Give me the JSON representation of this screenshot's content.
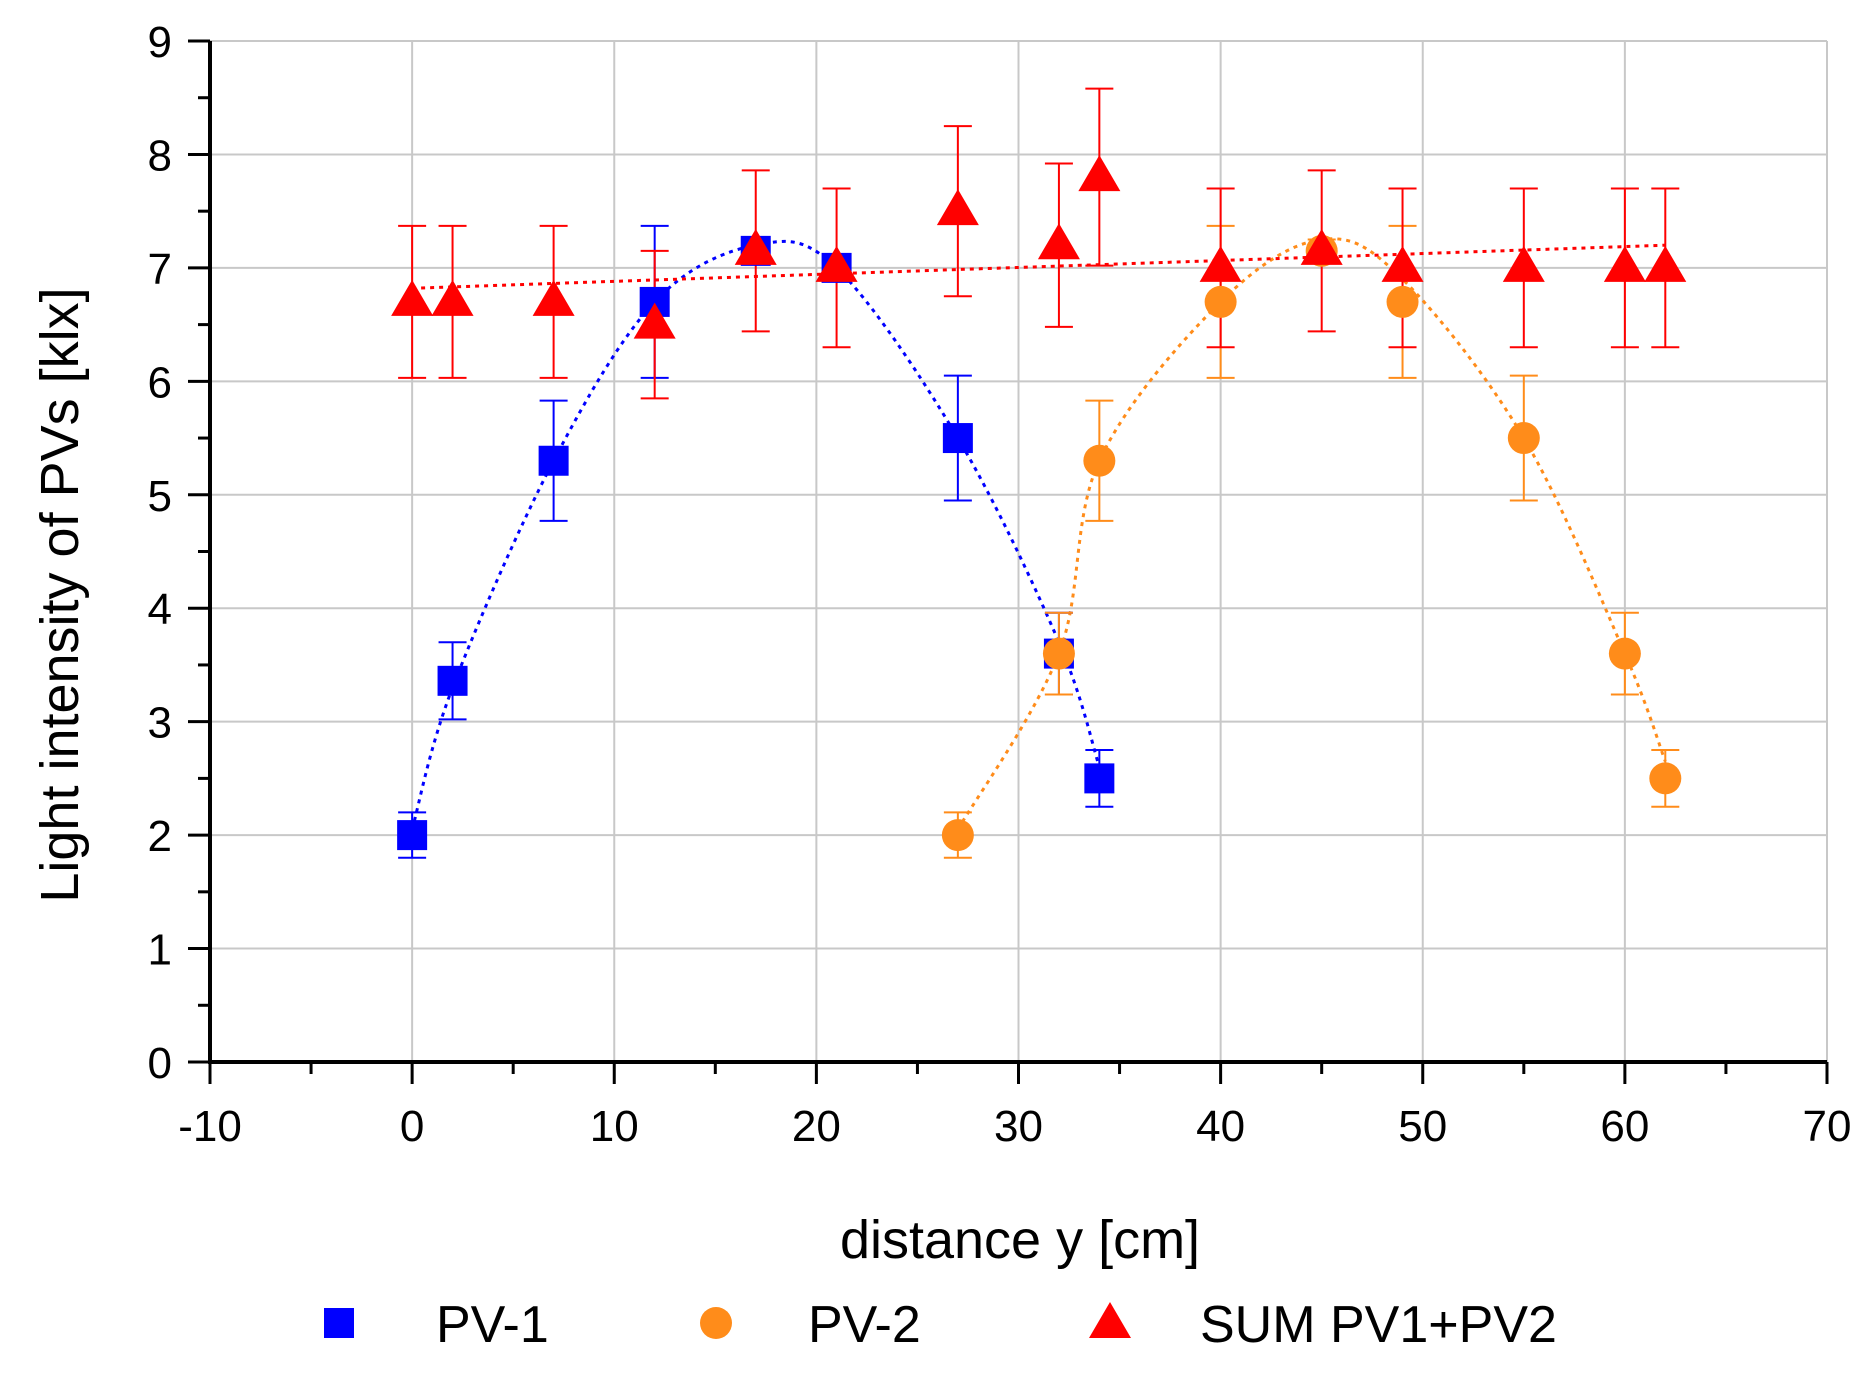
{
  "chart_data": {
    "type": "scatter",
    "xlabel": "distance y [cm]",
    "ylabel": "Light intensity of PVs [klx]",
    "xlim": [
      -10,
      70
    ],
    "ylim": [
      0,
      9
    ],
    "xticks": [
      -10,
      0,
      10,
      20,
      30,
      40,
      50,
      60,
      70
    ],
    "yticks": [
      0,
      1,
      2,
      3,
      4,
      5,
      6,
      7,
      8,
      9
    ],
    "grid": true,
    "legend_position": "bottom",
    "series": [
      {
        "name": "PV-1",
        "marker": "square",
        "color": "#0000ff",
        "x": [
          0,
          2,
          7,
          12,
          17,
          21,
          27,
          32,
          34
        ],
        "y": [
          2.0,
          3.36,
          5.3,
          6.7,
          7.15,
          7.0,
          5.5,
          3.6,
          2.5
        ],
        "err": [
          0.2,
          0.34,
          0.53,
          0.67,
          0.1,
          0.1,
          0.55,
          0.36,
          0.25
        ],
        "trend": {
          "x": [
            0,
            2,
            7,
            12,
            17,
            21,
            27,
            32,
            34
          ],
          "y": [
            2.05,
            3.3,
            5.3,
            6.7,
            7.2,
            7.0,
            5.5,
            3.7,
            2.6
          ]
        }
      },
      {
        "name": "PV-2",
        "marker": "circle",
        "color": "#ff8c1a",
        "x": [
          27,
          32,
          34,
          40,
          45,
          49,
          55,
          60,
          62
        ],
        "y": [
          2.0,
          3.6,
          5.3,
          6.7,
          7.15,
          6.7,
          5.5,
          3.6,
          2.5
        ],
        "err": [
          0.2,
          0.36,
          0.53,
          0.67,
          0.1,
          0.67,
          0.55,
          0.36,
          0.25
        ],
        "trend": {
          "x": [
            27,
            32,
            34,
            40,
            45,
            49,
            55,
            60,
            62
          ],
          "y": [
            2.05,
            3.6,
            5.3,
            6.7,
            7.25,
            6.9,
            5.5,
            3.6,
            2.65
          ]
        }
      },
      {
        "name": "SUM PV1+PV2",
        "marker": "triangle",
        "color": "#ff0000",
        "x": [
          0,
          2,
          7,
          12,
          17,
          21,
          27,
          32,
          34,
          40,
          45,
          49,
          55,
          60,
          62
        ],
        "y": [
          6.7,
          6.7,
          6.7,
          6.5,
          7.15,
          7.0,
          7.5,
          7.2,
          7.8,
          7.0,
          7.15,
          7.0,
          7.0,
          7.0,
          7.0
        ],
        "err": [
          0.67,
          0.67,
          0.67,
          0.65,
          0.71,
          0.7,
          0.75,
          0.72,
          0.78,
          0.7,
          0.71,
          0.7,
          0.7,
          0.7,
          0.7
        ],
        "trend": {
          "x": [
            0,
            62
          ],
          "y": [
            6.82,
            7.2
          ]
        }
      }
    ]
  }
}
